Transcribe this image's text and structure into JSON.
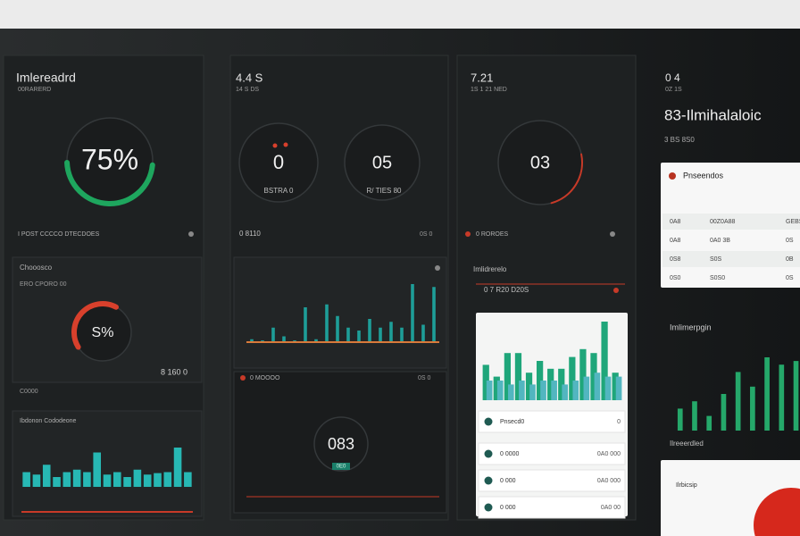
{
  "header": {
    "left": "Imlereadrd",
    "left_sub": "00RARERD",
    "mid": "4.4 S",
    "mid_sub": "14 S DS",
    "right": "7.21",
    "right_sub": "1S 1 21 NED",
    "far": "0 4",
    "far_sub": "0Z 1S",
    "title": "83-Ilmihalaloic",
    "title_sub": "3 BS 8S0"
  },
  "gauges": [
    {
      "label": "75%"
    },
    {
      "label": "0",
      "caption": "BSTRA 0"
    },
    {
      "label": "05",
      "caption": "R/ TIES 80"
    },
    {
      "label": "03"
    },
    {
      "label": "S%"
    },
    {
      "label": "083",
      "caption": "0E0"
    }
  ],
  "labels": {
    "left_row": "I POST CCCCO DTECDOES",
    "left_panel": "Chooosco",
    "left_panel_sub": "ERO CPORO 00",
    "left_value": "8 160 0",
    "left_foot": "C0000",
    "left_chart": "Ibdonon Cododeone",
    "mid_row": "0 8110",
    "mid_row_right": "0S 0",
    "mid_panel": "0 MOOOO",
    "mid_panel_right": "0S 0",
    "right_row": "0 ROROES",
    "right_panel": "Imlidrerelo",
    "right_panel_sub": "0 7 R20 D20S"
  },
  "card": {
    "title": "Pnseendos",
    "rows": [
      [
        "0A8",
        "00Z0A88",
        "GEBS"
      ],
      [
        "0A8",
        "0A0 3B",
        "0S"
      ],
      [
        "0S8",
        "S0S",
        "0B"
      ],
      [
        "0S0",
        "S0S0",
        "0S"
      ]
    ]
  },
  "list": [
    {
      "name": "Pnsecd0",
      "value": "0"
    },
    {
      "name": "0 0000",
      "value": "0A0 000"
    },
    {
      "name": "0 000",
      "value": "0A0 000"
    },
    {
      "name": "0 000",
      "value": "0A0 00"
    }
  ],
  "far": {
    "section": "Imlimerpgin",
    "section2": "Ilreeerdled",
    "card_title": "Ilrbicsip"
  },
  "charts": [
    {
      "name": "left",
      "color": "#27b8b4",
      "ylim": [
        0,
        100
      ],
      "values": [
        30,
        25,
        45,
        20,
        30,
        35,
        30,
        70,
        25,
        30,
        20,
        35,
        25,
        28,
        30,
        80,
        30
      ]
    },
    {
      "name": "mid",
      "color": "#1e9e98",
      "ylim": [
        0,
        100
      ],
      "values": [
        5,
        3,
        25,
        10,
        3,
        60,
        5,
        65,
        45,
        25,
        20,
        40,
        25,
        35,
        25,
        100,
        30,
        95
      ]
    },
    {
      "name": "card",
      "ylim": [
        0,
        100
      ],
      "series": [
        {
          "color": "#1fa67a",
          "values": [
            45,
            30,
            60,
            60,
            35,
            50,
            40,
            40,
            55,
            65,
            60,
            100,
            35
          ]
        },
        {
          "color": "#52b6c0",
          "values": [
            25,
            25,
            20,
            25,
            20,
            25,
            25,
            20,
            25,
            30,
            35,
            30,
            30
          ]
        }
      ]
    },
    {
      "name": "far",
      "color": "#25a86a",
      "ylim": [
        0,
        100
      ],
      "values": [
        30,
        40,
        20,
        50,
        80,
        60,
        100,
        90,
        95
      ]
    }
  ]
}
